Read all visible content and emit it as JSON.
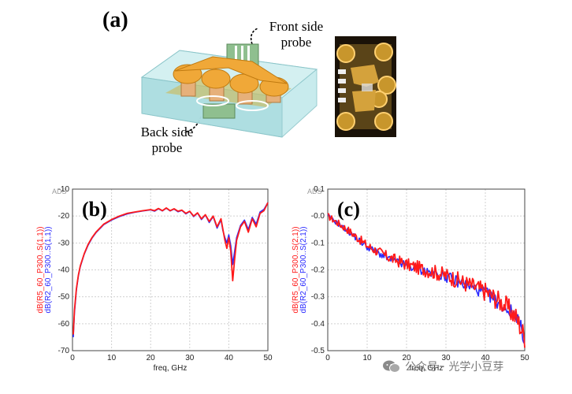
{
  "figure": {
    "panel_a_label": "(a)",
    "front_probe_label": "Front side probe",
    "back_probe_label": "Back side probe",
    "watermark": "公众号 · 光学小豆芽"
  },
  "colors": {
    "series1": "#ff1a1a",
    "series2": "#2a2aff",
    "gold": "#f0a838",
    "glass": "#bfe8ea"
  },
  "chart_data": [
    {
      "type": "line",
      "panel_label": "(b)",
      "brand": "ADS",
      "xlabel": "freq, GHz",
      "ylabel_series": [
        "dB(R5_60_P300..S(1,1))",
        "dB(R2_60_P300..S(1,1))"
      ],
      "xlim": [
        0,
        50
      ],
      "ylim": [
        -70,
        -10
      ],
      "xticks": [
        "0",
        "10",
        "20",
        "30",
        "40",
        "50"
      ],
      "yticks": [
        "-10",
        "-20",
        "-30",
        "-40",
        "-50",
        "-60",
        "-70"
      ],
      "series": [
        {
          "name": "dB(R5_60_P300..S(1,1))",
          "color": "red",
          "x": [
            0.2,
            0.5,
            1,
            1.5,
            2,
            3,
            4,
            5,
            6,
            8,
            10,
            12,
            14,
            16,
            18,
            20,
            21,
            22,
            23,
            24,
            25,
            26,
            27,
            28,
            29,
            30,
            31,
            32,
            33,
            34,
            35,
            36,
            37,
            38,
            38.5,
            39,
            39.5,
            40,
            40.5,
            41,
            41.5,
            42,
            43,
            44,
            45,
            46,
            47,
            48,
            49,
            50
          ],
          "values": [
            -64,
            -55,
            -47,
            -42,
            -38.5,
            -34,
            -30.5,
            -28,
            -26,
            -23,
            -21.3,
            -20,
            -19,
            -18.5,
            -18,
            -17.6,
            -18,
            -17.2,
            -18,
            -17,
            -18,
            -17.3,
            -18.2,
            -17.8,
            -19,
            -18.2,
            -20,
            -18.8,
            -21,
            -19.5,
            -22,
            -20,
            -24,
            -21,
            -25,
            -29,
            -32,
            -28,
            -33,
            -44,
            -36,
            -29,
            -24,
            -22,
            -26,
            -21,
            -24,
            -19,
            -18,
            -15
          ]
        },
        {
          "name": "dB(R2_60_P300..S(1,1))",
          "color": "blue",
          "x": [
            0.2,
            0.5,
            1,
            1.5,
            2,
            3,
            4,
            5,
            6,
            8,
            10,
            12,
            14,
            16,
            18,
            20,
            21,
            22,
            23,
            24,
            25,
            26,
            27,
            28,
            29,
            30,
            31,
            32,
            33,
            34,
            35,
            36,
            37,
            38,
            38.5,
            39,
            39.5,
            40,
            40.5,
            41,
            41.5,
            42,
            43,
            44,
            45,
            46,
            47,
            48,
            49,
            50
          ],
          "values": [
            -65,
            -56,
            -47.5,
            -42.3,
            -38.8,
            -34.2,
            -30.8,
            -28.2,
            -26.2,
            -23.2,
            -21.5,
            -20.2,
            -19.2,
            -18.6,
            -18.1,
            -17.7,
            -18.2,
            -17.3,
            -18.1,
            -17.1,
            -18.1,
            -17.4,
            -18.4,
            -17.9,
            -19.2,
            -18.3,
            -20.2,
            -18.9,
            -21.3,
            -19.6,
            -22.4,
            -20.2,
            -24.5,
            -21.4,
            -25.5,
            -28,
            -30,
            -27,
            -31,
            -38,
            -33,
            -28,
            -23.5,
            -21.5,
            -25,
            -20.5,
            -23,
            -18.5,
            -17.5,
            -15
          ]
        }
      ]
    },
    {
      "type": "line",
      "panel_label": "(c)",
      "brand": "ADS",
      "xlabel": "freq, GHz",
      "ylabel_series": [
        "dB(R5_60_P300..S(2,1))",
        "dB(R2_60_P300..S(2,1))"
      ],
      "xlim": [
        0,
        50
      ],
      "ylim": [
        -0.5,
        0.1
      ],
      "xticks": [
        "0",
        "10",
        "20",
        "30",
        "40",
        "50"
      ],
      "yticks": [
        "0.1",
        "-0.0",
        "-0.1",
        "-0.2",
        "-0.3",
        "-0.4",
        "-0.5"
      ],
      "series": [
        {
          "name": "dB(R5_60_P300..S(2,1))",
          "color": "red",
          "trend_x": [
            0,
            5,
            10,
            15,
            20,
            25,
            30,
            35,
            40,
            45,
            48,
            50
          ],
          "trend_values": [
            0.0,
            -0.05,
            -0.11,
            -0.15,
            -0.18,
            -0.2,
            -0.22,
            -0.25,
            -0.28,
            -0.33,
            -0.38,
            -0.45
          ],
          "noise_amplitude": 0.03
        },
        {
          "name": "dB(R2_60_P300..S(2,1))",
          "color": "blue",
          "trend_x": [
            0,
            5,
            10,
            15,
            20,
            25,
            30,
            35,
            40,
            45,
            48,
            50
          ],
          "trend_values": [
            0.0,
            -0.055,
            -0.115,
            -0.155,
            -0.185,
            -0.205,
            -0.225,
            -0.255,
            -0.285,
            -0.34,
            -0.37,
            -0.46
          ],
          "noise_amplitude": 0.02
        }
      ]
    }
  ]
}
